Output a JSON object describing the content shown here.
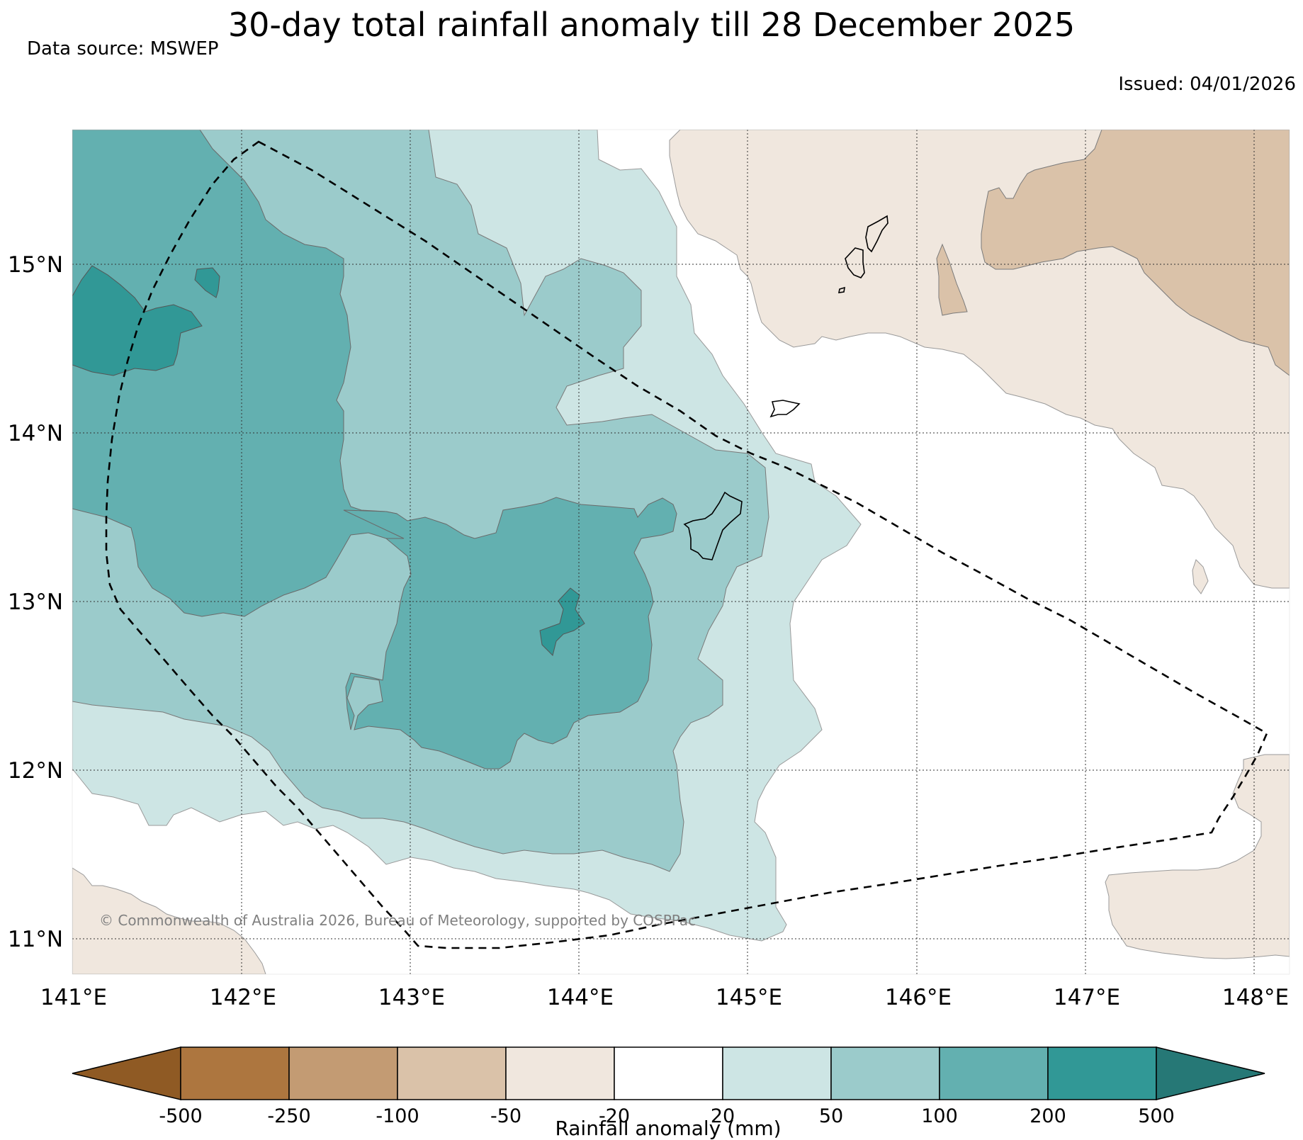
{
  "title": "30-day total rainfall anomaly till 28 December 2025",
  "data_source": "Data source: MSWEP",
  "issued": "Issued: 04/01/2026",
  "copyright": "© Commonwealth of Australia 2026, Bureau of Meteorology, supported by COSPPac",
  "map": {
    "lat_labels": [
      "15°N",
      "14°N",
      "13°N",
      "12°N",
      "11°N"
    ],
    "lon_labels": [
      "141°E",
      "142°E",
      "143°E",
      "144°E",
      "145°E",
      "146°E",
      "147°E",
      "148°E"
    ]
  },
  "colorbar": {
    "title": "Rainfall anomaly (mm)",
    "tick_labels": [
      "-500",
      "-250",
      "-100",
      "-50",
      "-20",
      "20",
      "50",
      "100",
      "200",
      "500"
    ],
    "colors": [
      "#8f5a24",
      "#ad763f",
      "#c39b73",
      "#dac2a9",
      "#f0e7de",
      "#ffffff",
      "#cde5e4",
      "#9bcbcb",
      "#63b0b0",
      "#319896",
      "#267876"
    ]
  },
  "colors": {
    "wet_20_50": "#cde5e4",
    "wet_50_100": "#9bcbcb",
    "wet_100_200": "#63b0b0",
    "wet_200_500": "#319896",
    "dry_minus20_minus50": "#f0e7de",
    "dry_minus50_minus100": "#dac2a9"
  }
}
